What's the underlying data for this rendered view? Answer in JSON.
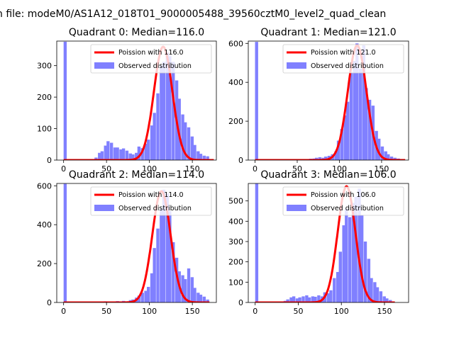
{
  "figure": {
    "suptitle": "n file: modeM0/AS1A12_018T01_9000005488_39560cztM0_level2_quad_clean",
    "colors": {
      "hist": "#8080ff",
      "fit": "#ff0000",
      "axis": "#000000"
    }
  },
  "chart_data": [
    {
      "type": "bar",
      "title": "Quadrant 0: Median=116.0",
      "xlabel": "",
      "ylabel": "",
      "xlim": [
        -8,
        178
      ],
      "ylim": [
        0,
        378
      ],
      "xticks": [
        0,
        50,
        100,
        150
      ],
      "yticks": [
        0,
        100,
        200,
        300
      ],
      "grid": false,
      "legend_position": "top-right",
      "legend": [
        "Poission with 116.0",
        "Observed distribution"
      ],
      "bin_width": 3.6,
      "bins": [
        [
          0,
          376
        ],
        [
          36,
          8
        ],
        [
          40,
          23
        ],
        [
          43,
          28
        ],
        [
          47,
          46
        ],
        [
          50,
          60
        ],
        [
          54,
          55
        ],
        [
          58,
          40
        ],
        [
          61,
          40
        ],
        [
          65,
          34
        ],
        [
          68,
          37
        ],
        [
          72,
          30
        ],
        [
          76,
          21
        ],
        [
          79,
          18
        ],
        [
          83,
          23
        ],
        [
          86,
          43
        ],
        [
          90,
          38
        ],
        [
          94,
          52
        ],
        [
          97,
          65
        ],
        [
          101,
          110
        ],
        [
          104,
          150
        ],
        [
          108,
          212
        ],
        [
          112,
          300
        ],
        [
          115,
          312
        ],
        [
          119,
          342
        ],
        [
          122,
          330
        ],
        [
          126,
          312
        ],
        [
          130,
          253
        ],
        [
          133,
          195
        ],
        [
          137,
          145
        ],
        [
          140,
          120
        ],
        [
          144,
          104
        ],
        [
          148,
          75
        ],
        [
          151,
          48
        ],
        [
          155,
          28
        ],
        [
          158,
          20
        ],
        [
          162,
          14
        ],
        [
          166,
          12
        ]
      ],
      "fit": {
        "name": "Poission with 116.0",
        "mean": 116.0,
        "peak": 360,
        "x_range": [
          0,
          175
        ]
      }
    },
    {
      "type": "bar",
      "title": "Quadrant 1: Median=121.0",
      "xlabel": "",
      "ylabel": "",
      "xlim": [
        -8,
        182
      ],
      "ylim": [
        0,
        612
      ],
      "xticks": [
        0,
        50,
        100,
        150
      ],
      "yticks": [
        0,
        200,
        400,
        600
      ],
      "grid": false,
      "legend_position": "top-right",
      "legend": [
        "Poission with 121.0",
        "Observed distribution"
      ],
      "bin_width": 3.7,
      "bins": [
        [
          0,
          608
        ],
        [
          60,
          5
        ],
        [
          64,
          7
        ],
        [
          68,
          8
        ],
        [
          71,
          12
        ],
        [
          75,
          15
        ],
        [
          79,
          12
        ],
        [
          82,
          18
        ],
        [
          86,
          22
        ],
        [
          90,
          30
        ],
        [
          94,
          45
        ],
        [
          97,
          100
        ],
        [
          101,
          160
        ],
        [
          105,
          230
        ],
        [
          108,
          300
        ],
        [
          112,
          450
        ],
        [
          116,
          510
        ],
        [
          119,
          600
        ],
        [
          123,
          470
        ],
        [
          127,
          590
        ],
        [
          130,
          370
        ],
        [
          134,
          310
        ],
        [
          138,
          280
        ],
        [
          142,
          150
        ],
        [
          145,
          110
        ],
        [
          149,
          70
        ],
        [
          153,
          45
        ],
        [
          156,
          30
        ],
        [
          160,
          18
        ],
        [
          164,
          12
        ],
        [
          168,
          8
        ]
      ],
      "fit": {
        "name": "Poission with 121.0",
        "mean": 121.0,
        "peak": 590,
        "x_range": [
          0,
          178
        ]
      }
    },
    {
      "type": "bar",
      "title": "Quadrant 2: Median=114.0",
      "xlabel": "",
      "ylabel": "",
      "xlim": [
        -8,
        178
      ],
      "ylim": [
        0,
        612
      ],
      "xticks": [
        0,
        50,
        100,
        150
      ],
      "yticks": [
        0,
        200,
        400,
        600
      ],
      "grid": false,
      "legend_position": "top-right",
      "legend": [
        "Poission with 114.0",
        "Observed distribution"
      ],
      "bin_width": 3.6,
      "bins": [
        [
          0,
          610
        ],
        [
          36,
          5
        ],
        [
          40,
          4
        ],
        [
          47,
          6
        ],
        [
          54,
          5
        ],
        [
          61,
          7
        ],
        [
          68,
          8
        ],
        [
          76,
          12
        ],
        [
          79,
          15
        ],
        [
          83,
          25
        ],
        [
          86,
          35
        ],
        [
          90,
          50
        ],
        [
          94,
          60
        ],
        [
          97,
          80
        ],
        [
          101,
          150
        ],
        [
          104,
          280
        ],
        [
          108,
          380
        ],
        [
          112,
          480
        ],
        [
          115,
          580
        ],
        [
          119,
          560
        ],
        [
          122,
          470
        ],
        [
          126,
          310
        ],
        [
          130,
          230
        ],
        [
          133,
          160
        ],
        [
          137,
          140
        ],
        [
          140,
          120
        ],
        [
          144,
          175
        ],
        [
          148,
          130
        ],
        [
          151,
          75
        ],
        [
          155,
          50
        ],
        [
          158,
          40
        ],
        [
          162,
          30
        ],
        [
          166,
          15
        ]
      ],
      "fit": {
        "name": "Poission with 114.0",
        "mean": 114.0,
        "peak": 572,
        "x_range": [
          0,
          170
        ]
      }
    },
    {
      "type": "bar",
      "title": "Quadrant 3: Median=106.0",
      "xlabel": "",
      "ylabel": "",
      "xlim": [
        -8,
        178
      ],
      "ylim": [
        0,
        586
      ],
      "xticks": [
        0,
        50,
        100,
        150
      ],
      "yticks": [
        0,
        100,
        200,
        300,
        400,
        500
      ],
      "grid": false,
      "legend_position": "top-right",
      "legend": [
        "Poission with 106.0",
        "Observed distribution"
      ],
      "bin_width": 3.6,
      "bins": [
        [
          0,
          585
        ],
        [
          33,
          8
        ],
        [
          36,
          15
        ],
        [
          40,
          25
        ],
        [
          43,
          30
        ],
        [
          47,
          20
        ],
        [
          50,
          25
        ],
        [
          54,
          30
        ],
        [
          58,
          35
        ],
        [
          61,
          25
        ],
        [
          65,
          30
        ],
        [
          68,
          28
        ],
        [
          72,
          35
        ],
        [
          76,
          30
        ],
        [
          79,
          50
        ],
        [
          83,
          45
        ],
        [
          86,
          60
        ],
        [
          90,
          120
        ],
        [
          94,
          150
        ],
        [
          97,
          250
        ],
        [
          101,
          380
        ],
        [
          104,
          460
        ],
        [
          108,
          420
        ],
        [
          112,
          490
        ],
        [
          115,
          520
        ],
        [
          119,
          560
        ],
        [
          122,
          430
        ],
        [
          126,
          300
        ],
        [
          130,
          215
        ],
        [
          133,
          120
        ],
        [
          137,
          100
        ],
        [
          140,
          75
        ],
        [
          144,
          55
        ],
        [
          148,
          30
        ],
        [
          151,
          20
        ],
        [
          155,
          12
        ]
      ],
      "fit": {
        "name": "Poission with 106.0",
        "mean": 106.0,
        "peak": 572,
        "x_range": [
          0,
          162
        ]
      }
    }
  ]
}
